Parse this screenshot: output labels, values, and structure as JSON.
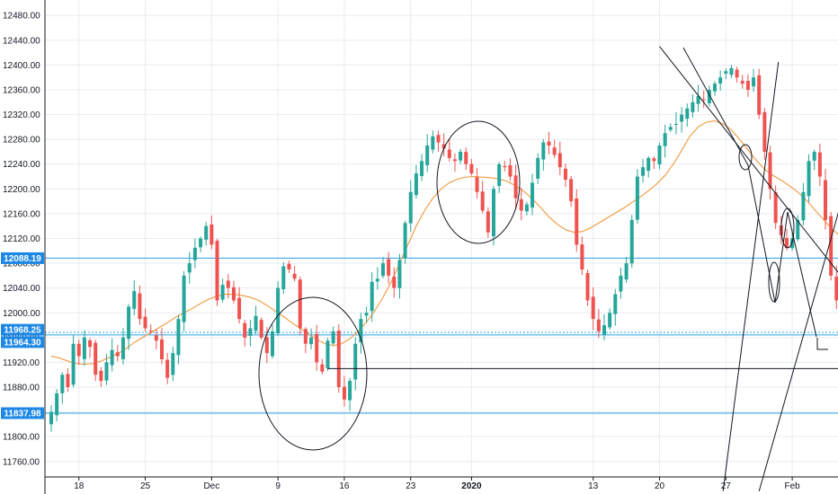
{
  "colors": {
    "up": "#26a69a",
    "down": "#ef5350",
    "ma": "#f0a04b",
    "level_line": "#2aa0e6",
    "level_label_bg": "#1e88e5",
    "drawing": "#131722",
    "grid": "#e9ecf2",
    "axis_text": "#131722"
  },
  "chart_data": {
    "type": "candlestick",
    "ylim": [
      11735,
      12505
    ],
    "y_ticks": [
      11760,
      11800,
      11840,
      11880,
      11920,
      11960,
      12000,
      12040,
      12080,
      12120,
      12160,
      12200,
      12240,
      12280,
      12320,
      12360,
      12400,
      12440,
      12480
    ],
    "y_tick_labels": [
      "11760.00",
      "11800.00",
      "11840.00",
      "11880.00",
      "11920.00",
      "11960.00",
      "12000.00",
      "12040.00",
      "12080.00",
      "12120.00",
      "12160.00",
      "12200.00",
      "12240.00",
      "12280.00",
      "12320.00",
      "12360.00",
      "12400.00",
      "12440.00",
      "12480.00"
    ],
    "x_ticks": [
      {
        "label": "18",
        "bar": 5,
        "bold": false
      },
      {
        "label": "25",
        "bar": 17,
        "bold": false
      },
      {
        "label": "Dec",
        "bar": 29,
        "bold": false
      },
      {
        "label": "9",
        "bar": 41,
        "bold": false
      },
      {
        "label": "16",
        "bar": 53,
        "bold": false
      },
      {
        "label": "23",
        "bar": 65,
        "bold": false
      },
      {
        "label": "2020",
        "bar": 76,
        "bold": true
      },
      {
        "label": "13",
        "bar": 98,
        "bold": false
      },
      {
        "label": "20",
        "bar": 110,
        "bold": false
      },
      {
        "label": "27",
        "bar": 122,
        "bold": false
      },
      {
        "label": "Feb",
        "bar": 134,
        "bold": false
      }
    ],
    "levels": [
      {
        "label": "12088.19",
        "value": 12088.19
      },
      {
        "label": "11968.25",
        "value": 11968.25
      },
      {
        "label": "11964.30",
        "value": 11964.3
      },
      {
        "label": "11837.98",
        "value": 11837.98
      }
    ],
    "series": [
      {
        "kind": "candles",
        "values": [
          11840,
          11870,
          11900,
          11880,
          11950,
          11930,
          11960,
          11945,
          11900,
          11890,
          11920,
          11940,
          11930,
          11960,
          12010,
          12035,
          11990,
          11975,
          11970,
          11955,
          11925,
          11895,
          11935,
          11990,
          12060,
          12080,
          12105,
          12120,
          12140,
          12110,
          12020,
          12045,
          12040,
          12020,
          11990,
          11960,
          11975,
          11995,
          11960,
          11935,
          11970,
          12040,
          12075,
          12070,
          12055,
          11975,
          11950,
          11960,
          11920,
          11905,
          11955,
          11970,
          11880,
          11860,
          11890,
          11950,
          11990,
          12000,
          12050,
          12055,
          12080,
          12060,
          12040,
          12085,
          12145,
          12195,
          12225,
          12245,
          12270,
          12285,
          12275,
          12265,
          12250,
          12245,
          12260,
          12240,
          12225,
          12195,
          12165,
          12130,
          12200,
          12240,
          12235,
          12220,
          12185,
          12165,
          12175,
          12210,
          12250,
          12275,
          12270,
          12255,
          12235,
          12215,
          12180,
          12110,
          12070,
          12020,
          11990,
          11970,
          11980,
          12000,
          12030,
          12060,
          12080,
          12150,
          12220,
          12235,
          12250,
          12245,
          12270,
          12290,
          12300,
          12305,
          12320,
          12330,
          12340,
          12350,
          12345,
          12360,
          12370,
          12380,
          12390,
          12395,
          12380,
          12370,
          12360,
          12380,
          12320,
          12260,
          12200,
          12145,
          12125,
          12105,
          12120,
          12150,
          12195,
          12245,
          12260,
          12220,
          12150,
          12060,
          12020,
          11960
        ]
      },
      {
        "kind": "moving_average",
        "values": [
          11930,
          11927,
          11922,
          11918,
          11917,
          11918,
          11922,
          11928,
          11934,
          11942,
          11952,
          11960,
          11968,
          11976,
          11984,
          11993,
          12000,
          12007,
          12015,
          12022,
          12027,
          12030,
          12030,
          12028,
          12025,
          12020,
          12012,
          12003,
          11994,
          11984,
          11975,
          11966,
          11957,
          11950,
          11947,
          11950,
          11958,
          11970,
          11985,
          12003,
          12025,
          12050,
          12080,
          12110,
          12140,
          12165,
          12185,
          12200,
          12210,
          12216,
          12219,
          12220,
          12219,
          12218,
          12216,
          12212,
          12205,
          12196,
          12184,
          12170,
          12155,
          12143,
          12134,
          12130,
          12131,
          12137,
          12145,
          12153,
          12161,
          12169,
          12178,
          12187,
          12197,
          12208,
          12222,
          12240,
          12262,
          12285,
          12300,
          12308,
          12310,
          12305,
          12295,
          12280,
          12263,
          12246,
          12232,
          12222,
          12214,
          12205,
          12195,
          12182,
          12167,
          12152,
          12137,
          12125,
          12117
        ]
      }
    ],
    "drawings": [
      {
        "kind": "trend_line",
        "from": [
          121.5,
          11712
        ],
        "to": [
          131.5,
          12405
        ]
      },
      {
        "kind": "trend_line",
        "from": [
          128.0,
          11712
        ],
        "to": [
          145.0,
          12245
        ]
      },
      {
        "kind": "trend_line",
        "from": [
          110.0,
          12430
        ],
        "to": [
          145.0,
          12035
        ]
      },
      {
        "kind": "horizontal_ray",
        "from": [
          50.0,
          11910
        ],
        "to": [
          145.0,
          11910
        ]
      }
    ]
  }
}
